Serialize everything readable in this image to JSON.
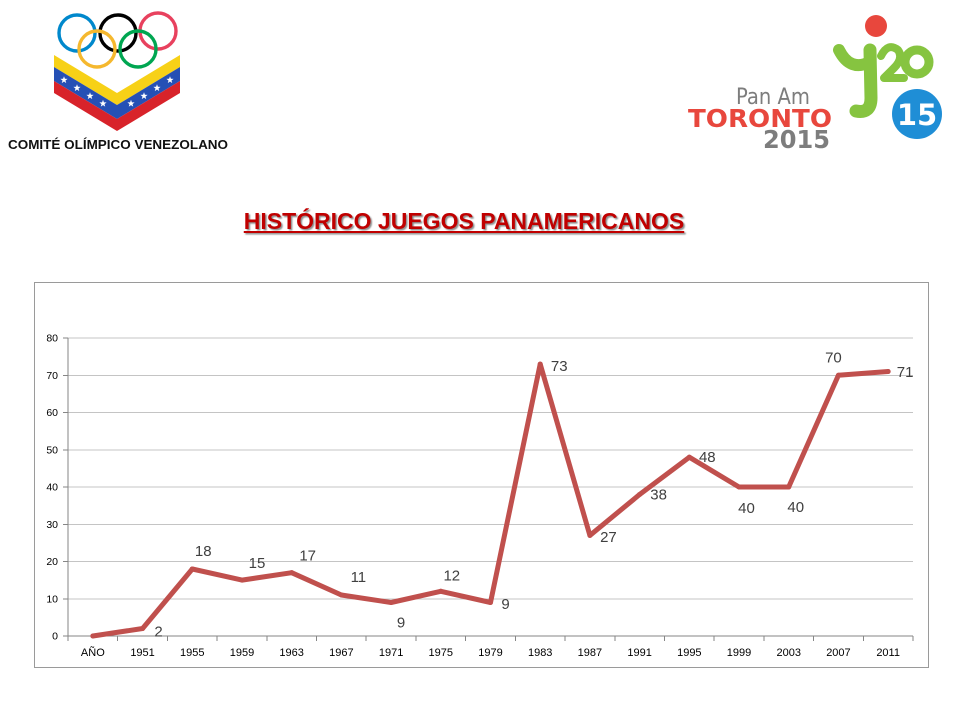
{
  "org_logo": {
    "name": "COMITÉ OLÍMPICO VENEZOLANO",
    "ring_colors": [
      "#0088CC",
      "#000000",
      "#E8415E",
      "#F5B82E",
      "#00A651"
    ],
    "flag_colors": {
      "yellow": "#F7D117",
      "blue": "#2550B5",
      "red": "#D8232A",
      "stars": "#FFFFFF"
    }
  },
  "event_logo": {
    "line1": "Pan Am",
    "line2": "TORONTO",
    "line3": "2015",
    "mark": "15",
    "colors": {
      "red": "#E8473D",
      "green": "#86C440",
      "blue": "#1F8ED6",
      "gray": "#7D7D7D"
    }
  },
  "colors": {
    "title": "#C00000",
    "series": "#C0504D",
    "data_label": "#404040"
  },
  "chart_data": {
    "type": "line",
    "title": "HISTÓRICO JUEGOS PANAMERICANOS",
    "xlabel": "",
    "ylabel": "",
    "categories": [
      "AÑO",
      "1951",
      "1955",
      "1959",
      "1963",
      "1967",
      "1971",
      "1975",
      "1979",
      "1983",
      "1987",
      "1991",
      "1995",
      "1999",
      "2003",
      "2007",
      "2011"
    ],
    "series": [
      {
        "values": [
          0,
          2,
          18,
          15,
          17,
          11,
          9,
          12,
          9,
          73,
          27,
          38,
          48,
          40,
          40,
          70,
          71
        ],
        "data_labels": [
          "",
          "2",
          "18",
          "15",
          "17",
          "11",
          "9",
          "12",
          "9",
          "73",
          "27",
          "38",
          "48",
          "40",
          "40",
          "70",
          "71"
        ]
      }
    ],
    "ylim": [
      0,
      80
    ],
    "yticks": [
      0,
      10,
      20,
      30,
      40,
      50,
      60,
      70,
      80
    ],
    "grid": true,
    "legend": "none"
  }
}
